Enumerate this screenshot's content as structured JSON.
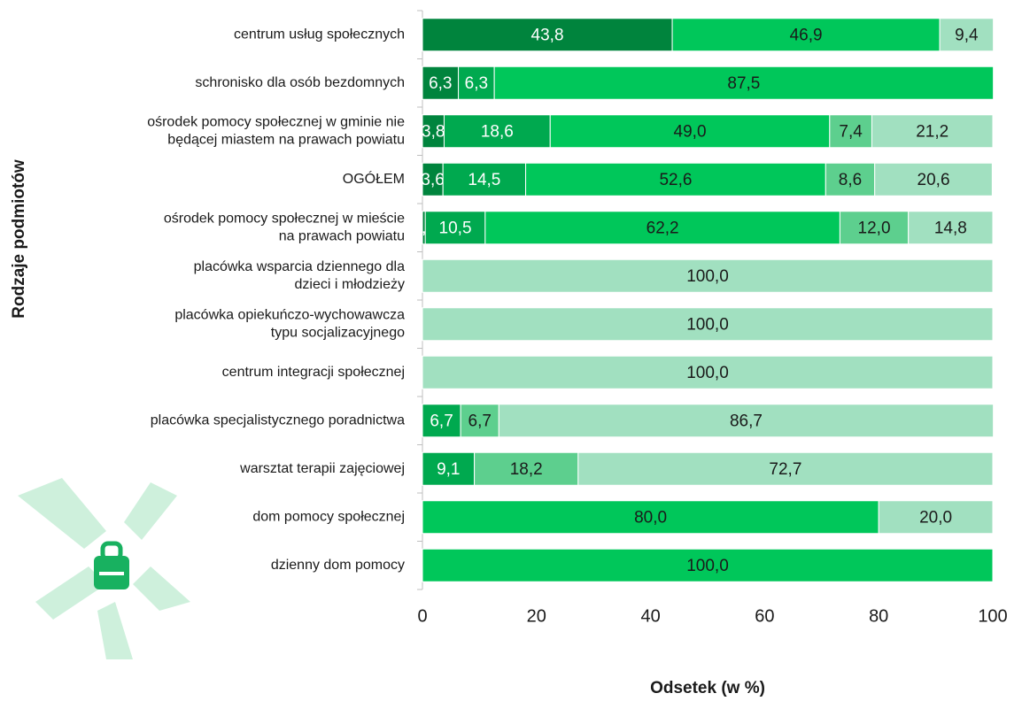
{
  "chart_data": {
    "type": "stacked-barh",
    "x_label": "Odsetek (w %)",
    "y_label": "Rodzaje podmiotów",
    "categories": [
      "centrum usług społecznych",
      "schronisko dla osób bezdomnych",
      "ośrodek pomocy społecznej w gminie nie\nbędącej miastem na prawach powiatu",
      "OGÓŁEM",
      "ośrodek pomocy społecznej w mieście\nna prawach powiatu",
      "placówka wsparcia dziennego dla\ndzieci i młodzieży",
      "placówka opiekuńczo-wychowawcza\ntypu socjalizacyjnego",
      "centrum integracji społecznej",
      "placówka specjalistycznego poradnictwa",
      "warsztat terapii zajęciowej",
      "dom pomocy społecznej",
      "dzienny dom pomocy"
    ],
    "series": [
      {
        "color": "#00843d",
        "values": [
          43.8,
          6.3,
          3.8,
          3.6,
          0.5,
          null,
          null,
          null,
          null,
          null,
          null,
          null
        ],
        "value_labels": [
          "43,8",
          "6,3",
          "3,8",
          "3,6",
          "0,5",
          null,
          null,
          null,
          null,
          null,
          null,
          null
        ]
      },
      {
        "color": "#00a94f",
        "values": [
          null,
          6.3,
          18.6,
          14.5,
          10.5,
          null,
          null,
          null,
          6.7,
          9.1,
          null,
          null
        ],
        "value_labels": [
          null,
          "6,3",
          "18,6",
          "14,5",
          "10,5",
          null,
          null,
          null,
          "6,7",
          "9,1",
          null,
          null
        ]
      },
      {
        "color": "#00c75a",
        "values": [
          46.9,
          87.5,
          49.0,
          52.6,
          62.2,
          null,
          null,
          null,
          null,
          null,
          80.0,
          100.0
        ],
        "value_labels": [
          "46,9",
          "87,5",
          "49,0",
          "52,6",
          "62,2",
          null,
          null,
          null,
          null,
          null,
          "80,0",
          "100,0"
        ]
      },
      {
        "color": "#5dcf8e",
        "values": [
          null,
          null,
          7.4,
          8.6,
          12.0,
          null,
          null,
          null,
          6.7,
          18.2,
          null,
          null
        ],
        "value_labels": [
          null,
          null,
          "7,4",
          "8,6",
          "12,0",
          null,
          null,
          null,
          "6,7",
          "18,2",
          null,
          null
        ]
      },
      {
        "color": "#a1e0c0",
        "values": [
          9.4,
          null,
          21.2,
          20.6,
          14.8,
          100.0,
          100.0,
          100.0,
          86.7,
          72.7,
          20.0,
          null
        ],
        "value_labels": [
          "9,4",
          null,
          "21,2",
          "20,6",
          "14,8",
          "100,0",
          "100,0",
          "100,0",
          "86,7",
          "72,7",
          "20,0",
          null
        ]
      }
    ],
    "xlim": [
      0,
      100
    ],
    "xticks": [
      0,
      20,
      40,
      60,
      80,
      100
    ]
  }
}
